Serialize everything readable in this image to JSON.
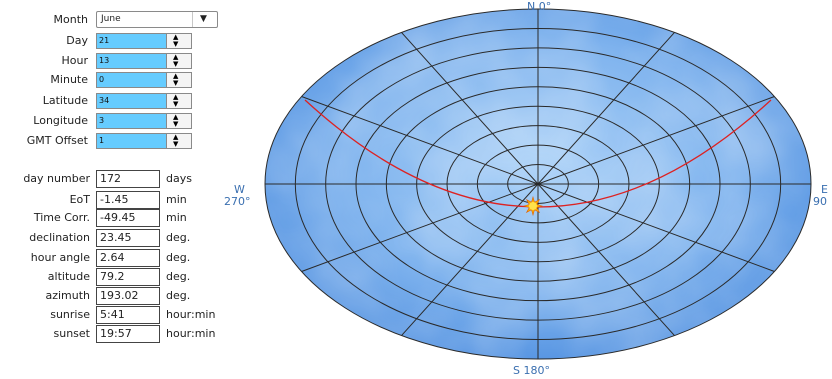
{
  "inputs": {
    "month": {
      "label": "Month",
      "value": "June"
    },
    "day": {
      "label": "Day",
      "value": "21"
    },
    "hour": {
      "label": "Hour",
      "value": "13"
    },
    "minute": {
      "label": "Minute",
      "value": "0"
    },
    "latitude": {
      "label": "Latitude",
      "value": "34"
    },
    "longitude": {
      "label": "Longitude",
      "value": "3"
    },
    "gmt_offset": {
      "label": "GMT Offset",
      "value": "1"
    }
  },
  "outputs": [
    {
      "label": "day number",
      "value": "172",
      "unit": "days"
    },
    {
      "label": "EoT",
      "value": "-1.45",
      "unit": "min"
    },
    {
      "label": "Time Corr.",
      "value": "-49.45",
      "unit": "min"
    },
    {
      "label": "declination",
      "value": "23.45",
      "unit": "deg."
    },
    {
      "label": "hour angle",
      "value": "2.64",
      "unit": "deg."
    },
    {
      "label": "altitude",
      "value": "79.2",
      "unit": "deg."
    },
    {
      "label": "azimuth",
      "value": "193.02",
      "unit": "deg."
    },
    {
      "label": "sunrise",
      "value": "5:41",
      "unit": "hour:min"
    },
    {
      "label": "sunset",
      "value": "19:57",
      "unit": "hour:min"
    }
  ],
  "compass": {
    "north": "N 0°",
    "south": "S 180°",
    "west_letter": "W",
    "west_deg": "270°",
    "east_letter": "E",
    "east_deg": "90"
  },
  "colors": {
    "sky": "#5a9ae6",
    "grid": "#2a2a2a",
    "sun_path": "#dd2222",
    "sun": "#ffb000",
    "input_highlight": "#66ccff",
    "direction_label": "#3a6fb0"
  },
  "icons": {
    "sun_marker": "sun-icon",
    "spinner_up": "triangle-up",
    "spinner_down": "triangle-down",
    "dropdown": "triangle-down"
  }
}
